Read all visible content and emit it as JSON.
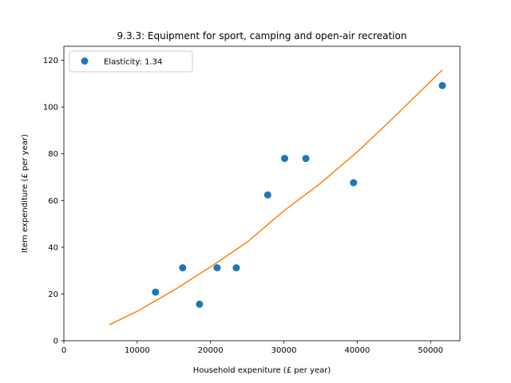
{
  "chart_data": {
    "type": "scatter",
    "title": "9.3.3: Equipment for sport, camping and open-air recreation",
    "xlabel": "Household expeniture (£ per year)",
    "ylabel": "Item expenditure (£ per year)",
    "xlim": [
      0,
      54000
    ],
    "ylim": [
      0,
      126
    ],
    "xticks": [
      0,
      10000,
      20000,
      30000,
      40000,
      50000
    ],
    "yticks": [
      0,
      20,
      40,
      60,
      80,
      100,
      120
    ],
    "grid": false,
    "legend_position": "top-left",
    "series": [
      {
        "name": "Elasticity: 1.34",
        "kind": "scatter",
        "color": "#1f77b4",
        "points": [
          {
            "x": 12500,
            "y": 20.8
          },
          {
            "x": 16200,
            "y": 31.2
          },
          {
            "x": 18500,
            "y": 15.6
          },
          {
            "x": 20900,
            "y": 31.2
          },
          {
            "x": 23500,
            "y": 31.2
          },
          {
            "x": 27800,
            "y": 62.4
          },
          {
            "x": 30100,
            "y": 78.0
          },
          {
            "x": 33000,
            "y": 78.0
          },
          {
            "x": 39500,
            "y": 67.6
          },
          {
            "x": 51600,
            "y": 109.2
          }
        ]
      },
      {
        "kind": "line",
        "color": "#ff7f0e",
        "points": [
          {
            "x": 6200,
            "y": 6.8
          },
          {
            "x": 10000,
            "y": 12.6
          },
          {
            "x": 15000,
            "y": 21.6
          },
          {
            "x": 20000,
            "y": 31.6
          },
          {
            "x": 25000,
            "y": 42.2
          },
          {
            "x": 30000,
            "y": 55.6
          },
          {
            "x": 35000,
            "y": 67.4
          },
          {
            "x": 40000,
            "y": 80.8
          },
          {
            "x": 45000,
            "y": 95.6
          },
          {
            "x": 51600,
            "y": 115.9
          }
        ]
      }
    ]
  }
}
